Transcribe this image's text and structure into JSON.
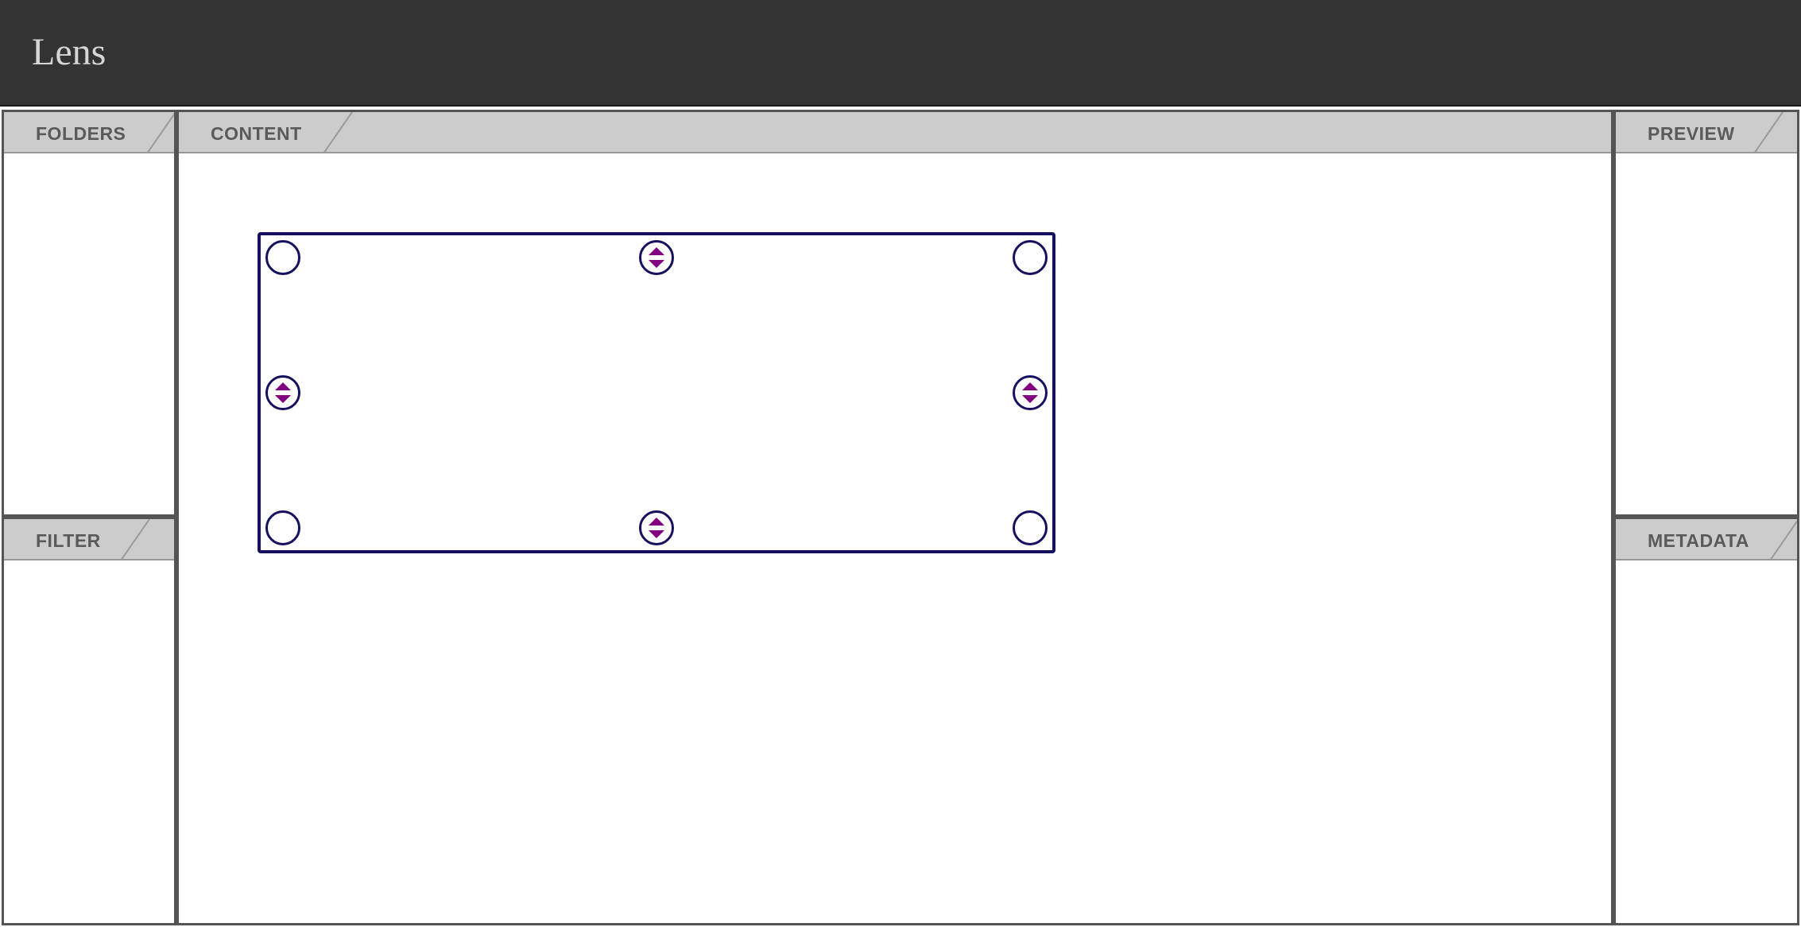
{
  "app": {
    "title": "Lens"
  },
  "panels": {
    "folders": {
      "label": "FOLDERS"
    },
    "filter": {
      "label": "FILTER"
    },
    "content": {
      "label": "CONTENT"
    },
    "preview": {
      "label": "PREVIEW"
    },
    "metadata": {
      "label": "METADATA"
    }
  },
  "selection": {
    "handles": [
      {
        "name": "top-left",
        "icon": "circle-handle-icon"
      },
      {
        "name": "top-center",
        "icon": "resize-vertical-icon"
      },
      {
        "name": "top-right",
        "icon": "circle-handle-icon"
      },
      {
        "name": "middle-left",
        "icon": "resize-vertical-icon"
      },
      {
        "name": "middle-right",
        "icon": "resize-vertical-icon"
      },
      {
        "name": "bottom-left",
        "icon": "circle-handle-icon"
      },
      {
        "name": "bottom-center",
        "icon": "resize-vertical-icon"
      },
      {
        "name": "bottom-right",
        "icon": "circle-handle-icon"
      }
    ]
  },
  "colors": {
    "titlebar": "#333333",
    "panel_header": "#cccccc",
    "selection_border": "#15115e",
    "handle_arrow": "#800080"
  }
}
